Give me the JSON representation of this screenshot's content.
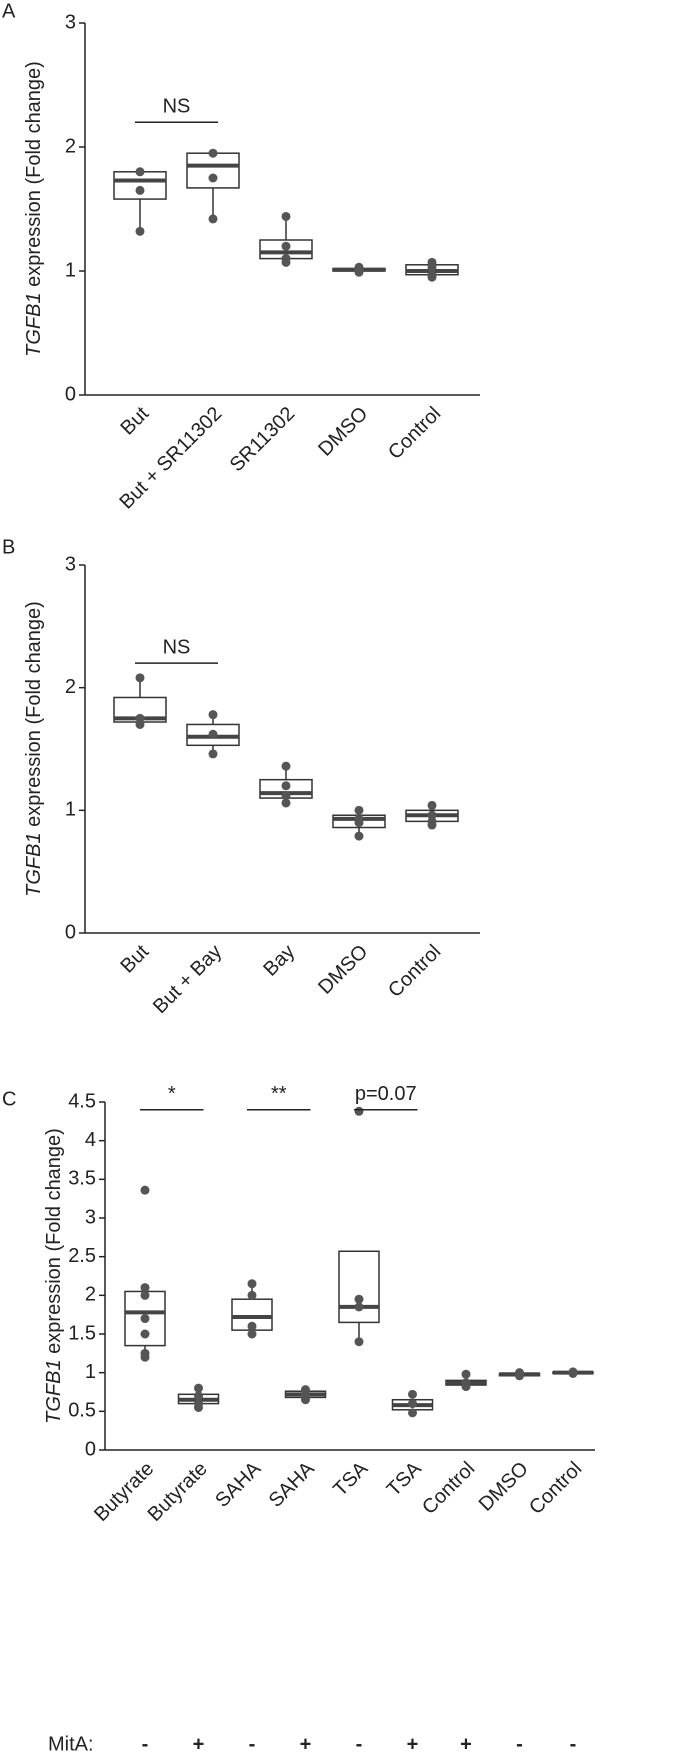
{
  "chart_data": [
    {
      "type": "box",
      "panel_label": "A",
      "y_label_gene": "TGFB1",
      "y_label": " expression (Fold change)",
      "categories": [
        "But",
        "But + SR11302",
        "SR11302",
        "DMSO",
        "Control"
      ],
      "values": [
        {
          "min": 1.32,
          "q1": 1.58,
          "median": 1.73,
          "q3": 1.8,
          "max": 1.8,
          "points": [
            1.8,
            1.65,
            1.32
          ]
        },
        {
          "min": 1.42,
          "q1": 1.67,
          "median": 1.85,
          "q3": 1.95,
          "max": 1.95,
          "points": [
            1.95,
            1.75,
            1.42
          ]
        },
        {
          "min": 1.07,
          "q1": 1.1,
          "median": 1.15,
          "q3": 1.25,
          "max": 1.44,
          "points": [
            1.44,
            1.2,
            1.1,
            1.07
          ]
        },
        {
          "min": 0.99,
          "q1": 1.0,
          "median": 1.01,
          "q3": 1.02,
          "max": 1.03,
          "points": [
            1.03,
            1.01,
            0.99
          ]
        },
        {
          "min": 0.95,
          "q1": 0.97,
          "median": 1.0,
          "q3": 1.05,
          "max": 1.07,
          "points": [
            1.07,
            1.03,
            0.97,
            0.95
          ]
        }
      ],
      "annotations": [
        {
          "text": "NS",
          "from": 0,
          "to": 1,
          "y": 2.2
        }
      ],
      "ylim": [
        0,
        3
      ],
      "yticks": [
        0,
        1,
        2,
        3
      ],
      "box_color": "#333333",
      "point_color": "#555555"
    },
    {
      "type": "box",
      "panel_label": "B",
      "y_label_gene": "TGFB1",
      "y_label": " expression (Fold change)",
      "categories": [
        "But",
        "But + Bay",
        "Bay",
        "DMSO",
        "Control"
      ],
      "values": [
        {
          "min": 1.7,
          "q1": 1.72,
          "median": 1.75,
          "q3": 1.92,
          "max": 2.08,
          "points": [
            2.08,
            1.75,
            1.7
          ]
        },
        {
          "min": 1.46,
          "q1": 1.53,
          "median": 1.6,
          "q3": 1.7,
          "max": 1.78,
          "points": [
            1.78,
            1.62,
            1.46
          ]
        },
        {
          "min": 1.06,
          "q1": 1.1,
          "median": 1.14,
          "q3": 1.25,
          "max": 1.36,
          "points": [
            1.36,
            1.2,
            1.12,
            1.06
          ]
        },
        {
          "min": 0.79,
          "q1": 0.86,
          "median": 0.93,
          "q3": 0.96,
          "max": 1.0,
          "points": [
            1.0,
            0.93,
            0.9,
            0.79
          ]
        },
        {
          "min": 0.88,
          "q1": 0.91,
          "median": 0.96,
          "q3": 1.0,
          "max": 1.04,
          "points": [
            1.04,
            0.96,
            0.91,
            0.88
          ]
        }
      ],
      "annotations": [
        {
          "text": "NS",
          "from": 0,
          "to": 1,
          "y": 2.2
        }
      ],
      "ylim": [
        0,
        3
      ],
      "yticks": [
        0,
        1,
        2,
        3
      ],
      "box_color": "#333333",
      "point_color": "#555555"
    },
    {
      "type": "box",
      "panel_label": "C",
      "y_label_gene": "TGFB1",
      "y_label": " expression (Fold change)",
      "categories": [
        "Butyrate",
        "Butyrate",
        "SAHA",
        "SAHA",
        "TSA",
        "TSA",
        "Control",
        "DMSO",
        "Control"
      ],
      "mita_title": "MitA:",
      "mita_labels": [
        "-",
        "+",
        "-",
        "+",
        "-",
        "+",
        "+",
        "-",
        "-"
      ],
      "values": [
        {
          "min": 1.2,
          "q1": 1.35,
          "median": 1.78,
          "q3": 2.05,
          "max": 2.05,
          "points": [
            3.36,
            2.1,
            2.0,
            1.7,
            1.5,
            1.25,
            1.2
          ]
        },
        {
          "min": 0.55,
          "q1": 0.6,
          "median": 0.65,
          "q3": 0.72,
          "max": 0.8,
          "points": [
            0.8,
            0.7,
            0.6,
            0.55
          ]
        },
        {
          "min": 1.55,
          "q1": 1.55,
          "median": 1.72,
          "q3": 1.95,
          "max": 2.15,
          "points": [
            2.15,
            2.0,
            1.6,
            1.5
          ]
        },
        {
          "min": 0.65,
          "q1": 0.68,
          "median": 0.72,
          "q3": 0.76,
          "max": 0.78,
          "points": [
            0.78,
            0.72,
            0.65
          ]
        },
        {
          "min": 1.42,
          "q1": 1.65,
          "median": 1.85,
          "q3": 2.57,
          "max": 2.57,
          "points": [
            4.38,
            1.95,
            1.85,
            1.4
          ]
        },
        {
          "min": 0.48,
          "q1": 0.52,
          "median": 0.58,
          "q3": 0.65,
          "max": 0.72,
          "points": [
            0.72,
            0.6,
            0.48
          ]
        },
        {
          "min": 0.82,
          "q1": 0.84,
          "median": 0.87,
          "q3": 0.9,
          "max": 0.98,
          "points": [
            0.98,
            0.87,
            0.82
          ]
        },
        {
          "min": 0.95,
          "q1": 0.96,
          "median": 0.98,
          "q3": 0.99,
          "max": 1.0,
          "points": [
            1.0,
            0.96
          ]
        },
        {
          "min": 0.98,
          "q1": 0.99,
          "median": 1.0,
          "q3": 1.01,
          "max": 1.02,
          "points": [
            1.01,
            0.99
          ]
        }
      ],
      "annotations": [
        {
          "text": "*",
          "from": 0,
          "to": 1,
          "y": 4.4
        },
        {
          "text": "**",
          "from": 2,
          "to": 3,
          "y": 4.4
        },
        {
          "text": "p=0.07",
          "from": 4,
          "to": 5,
          "y": 4.4
        }
      ],
      "ylim": [
        0,
        4.5
      ],
      "yticks": [
        0,
        0.5,
        1,
        1.5,
        2,
        2.5,
        3,
        3.5,
        4,
        4.5
      ],
      "box_color": "#333333",
      "point_color": "#555555"
    }
  ]
}
